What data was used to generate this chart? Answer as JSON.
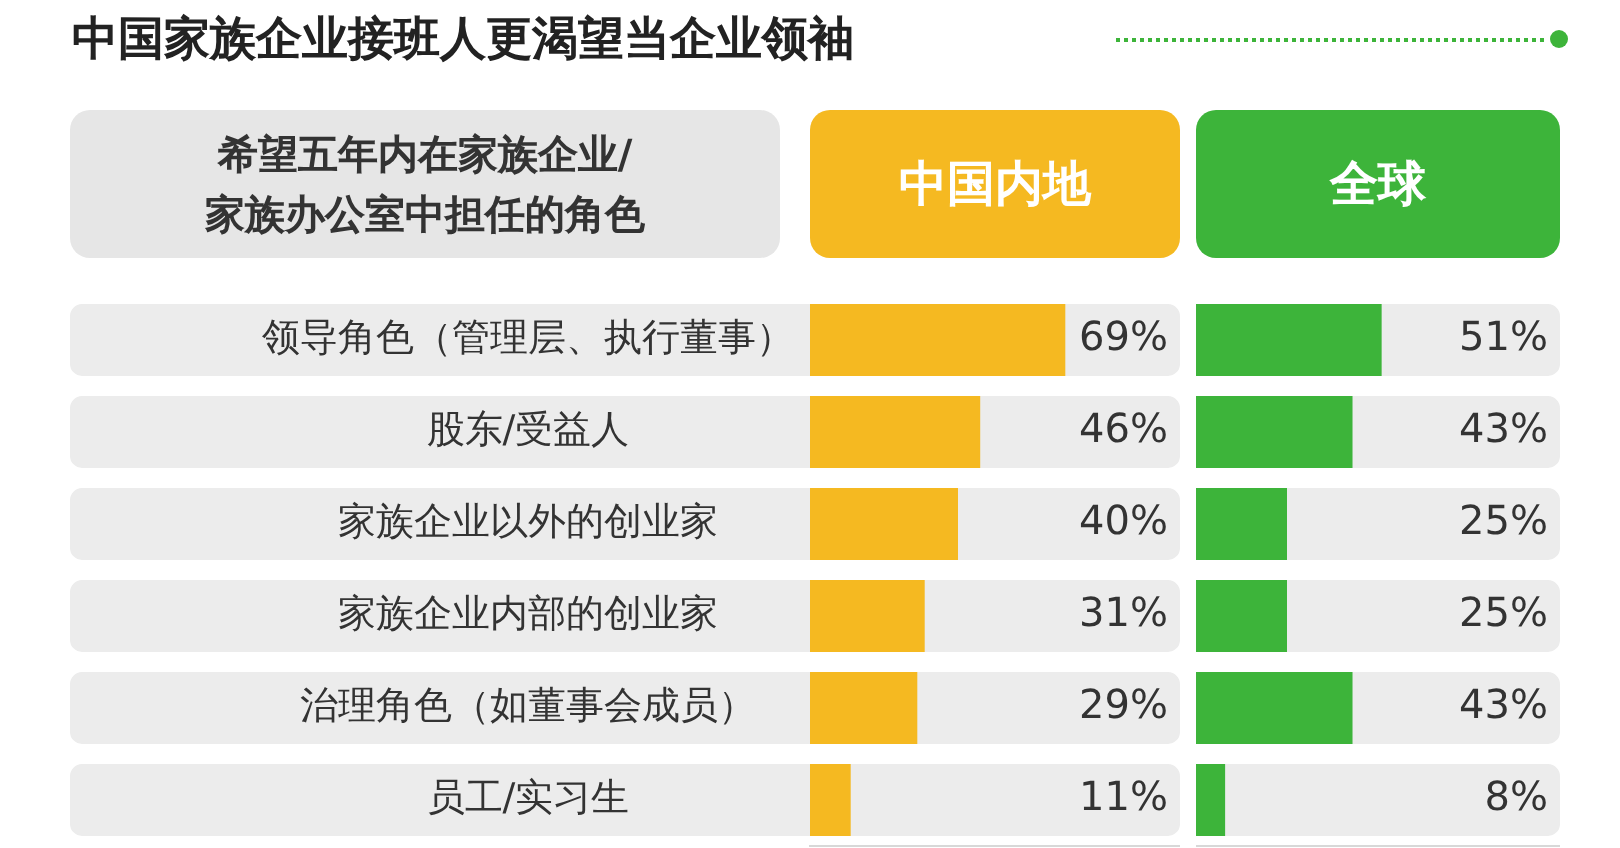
{
  "chart_data": [
    {
      "type": "bar",
      "orientation": "horizontal",
      "title": "中国家族企业接班人更渴望当企业领袖",
      "ylabel": "希望五年内在家族企业/家族办公室中担任的角色",
      "legend": "top",
      "tick_labels": "y",
      "xlim": [
        0,
        100
      ],
      "categories": [
        "领导角色（管理层、执行董事）",
        "股东/受益人",
        "家族企业以外的创业家",
        "家族企业内部的创业家",
        "治理角色（如董事会成员）",
        "员工/实习生"
      ],
      "series": [
        {
          "name": "中国内地",
          "color": "#f5b921",
          "values": [
            69,
            46,
            40,
            31,
            29,
            11
          ],
          "value_labels": [
            "69%",
            "46%",
            "40%",
            "31%",
            "29%",
            "11%"
          ]
        }
      ]
    },
    {
      "type": "bar",
      "orientation": "horizontal",
      "legend": "top",
      "tick_labels": false,
      "xlim": [
        0,
        100
      ],
      "categories": [
        null,
        null,
        null,
        null,
        null,
        null
      ],
      "series": [
        {
          "name": "全球",
          "color": "#3db43a",
          "values": [
            51,
            43,
            25,
            25,
            43,
            8
          ],
          "value_labels": [
            "51%",
            "43%",
            "25%",
            "25%",
            "43%",
            "8%"
          ]
        }
      ]
    }
  ]
}
